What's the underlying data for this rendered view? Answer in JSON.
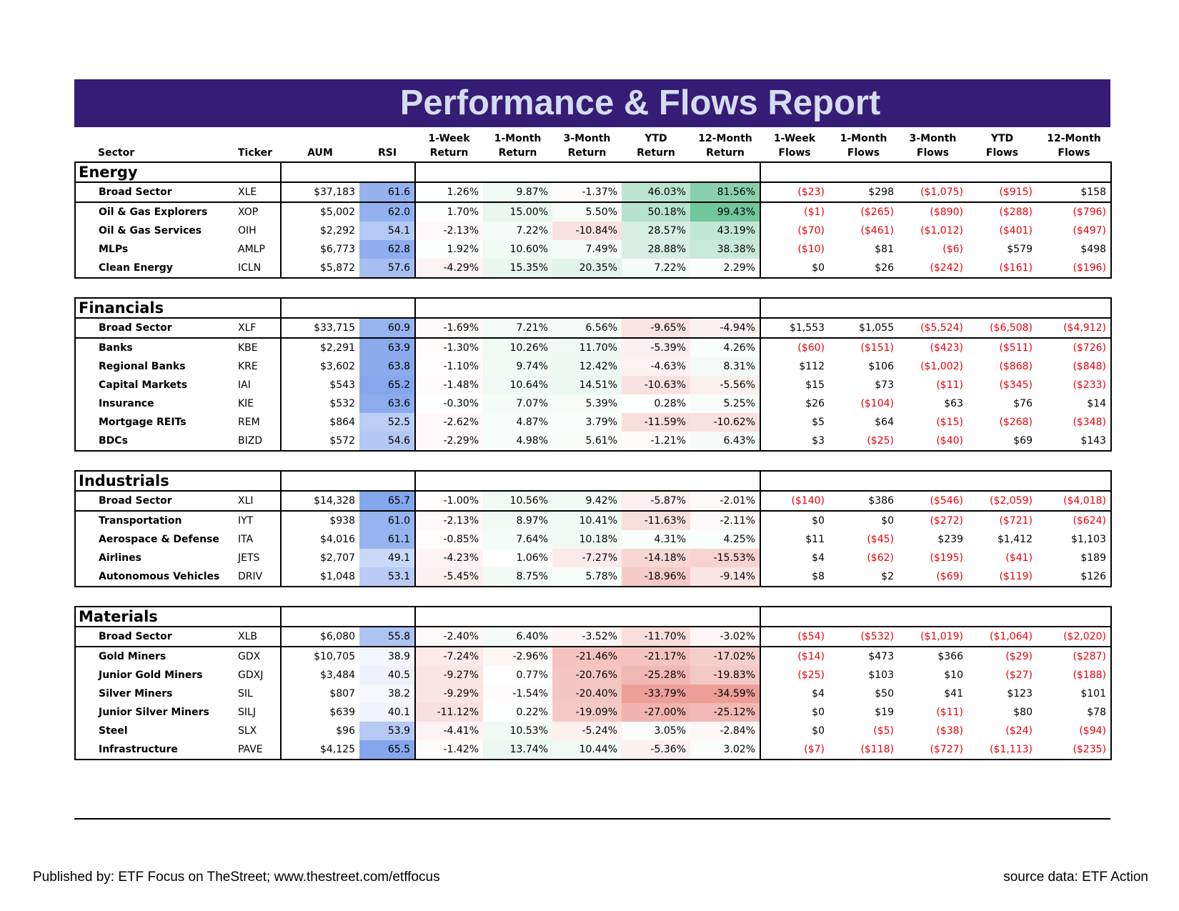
{
  "title": "Performance & Flows Report",
  "headers": [
    {
      "l1": "",
      "l2": "Sector"
    },
    {
      "l1": "",
      "l2": "Ticker"
    },
    {
      "l1": "",
      "l2": "AUM"
    },
    {
      "l1": "",
      "l2": "RSI"
    },
    {
      "l1": "1-Week",
      "l2": "Return"
    },
    {
      "l1": "1-Month",
      "l2": "Return"
    },
    {
      "l1": "3-Month",
      "l2": "Return"
    },
    {
      "l1": "YTD",
      "l2": "Return"
    },
    {
      "l1": "12-Month",
      "l2": "Return"
    },
    {
      "l1": "1-Week",
      "l2": "Flows"
    },
    {
      "l1": "1-Month",
      "l2": "Flows"
    },
    {
      "l1": "3-Month",
      "l2": "Flows"
    },
    {
      "l1": "YTD",
      "l2": "Flows"
    },
    {
      "l1": "12-Month",
      "l2": "Flows"
    }
  ],
  "colors": {
    "banner": "#351c75",
    "title": "#d6dcf0",
    "negative_flow": "#e8000b",
    "rsi_scale": "#6d95e8",
    "return_up": "#57bb8a",
    "return_down": "#e67c73"
  },
  "sectors": [
    {
      "name": "Energy",
      "rows": [
        {
          "name": "Broad Sector",
          "ticker": "XLE",
          "aum": "$37,183",
          "rsi": "61.6",
          "ret": [
            "1.26%",
            "9.87%",
            "-1.37%",
            "46.03%",
            "81.56%"
          ],
          "flows": [
            "($23)",
            "$298",
            "($1,075)",
            "($915)",
            "$158"
          ]
        },
        {
          "name": "Oil & Gas Explorers",
          "ticker": "XOP",
          "aum": "$5,002",
          "rsi": "62.0",
          "ret": [
            "1.70%",
            "15.00%",
            "5.50%",
            "50.18%",
            "99.43%"
          ],
          "flows": [
            "($1)",
            "($265)",
            "($890)",
            "($288)",
            "($796)"
          ]
        },
        {
          "name": "Oil & Gas Services",
          "ticker": "OIH",
          "aum": "$2,292",
          "rsi": "54.1",
          "ret": [
            "-2.13%",
            "7.22%",
            "-10.84%",
            "28.57%",
            "43.19%"
          ],
          "flows": [
            "($70)",
            "($461)",
            "($1,012)",
            "($401)",
            "($497)"
          ]
        },
        {
          "name": "MLPs",
          "ticker": "AMLP",
          "aum": "$6,773",
          "rsi": "62.8",
          "ret": [
            "1.92%",
            "10.60%",
            "7.49%",
            "28.88%",
            "38.38%"
          ],
          "flows": [
            "($10)",
            "$81",
            "($6)",
            "$579",
            "$498"
          ]
        },
        {
          "name": "Clean Energy",
          "ticker": "ICLN",
          "aum": "$5,872",
          "rsi": "57.6",
          "ret": [
            "-4.29%",
            "15.35%",
            "20.35%",
            "7.22%",
            "2.29%"
          ],
          "flows": [
            "$0",
            "$26",
            "($242)",
            "($161)",
            "($196)"
          ]
        }
      ]
    },
    {
      "name": "Financials",
      "rows": [
        {
          "name": "Broad Sector",
          "ticker": "XLF",
          "aum": "$33,715",
          "rsi": "60.9",
          "ret": [
            "-1.69%",
            "7.21%",
            "6.56%",
            "-9.65%",
            "-4.94%"
          ],
          "flows": [
            "$1,553",
            "$1,055",
            "($5,524)",
            "($6,508)",
            "($4,912)"
          ]
        },
        {
          "name": "Banks",
          "ticker": "KBE",
          "aum": "$2,291",
          "rsi": "63.9",
          "ret": [
            "-1.30%",
            "10.26%",
            "11.70%",
            "-5.39%",
            "4.26%"
          ],
          "flows": [
            "($60)",
            "($151)",
            "($423)",
            "($511)",
            "($726)"
          ]
        },
        {
          "name": "Regional Banks",
          "ticker": "KRE",
          "aum": "$3,602",
          "rsi": "63.8",
          "ret": [
            "-1.10%",
            "9.74%",
            "12.42%",
            "-4.63%",
            "8.31%"
          ],
          "flows": [
            "$112",
            "$106",
            "($1,002)",
            "($868)",
            "($848)"
          ]
        },
        {
          "name": "Capital Markets",
          "ticker": "IAI",
          "aum": "$543",
          "rsi": "65.2",
          "ret": [
            "-1.48%",
            "10.64%",
            "14.51%",
            "-10.63%",
            "-5.56%"
          ],
          "flows": [
            "$15",
            "$73",
            "($11)",
            "($345)",
            "($233)"
          ]
        },
        {
          "name": "Insurance",
          "ticker": "KIE",
          "aum": "$532",
          "rsi": "63.6",
          "ret": [
            "-0.30%",
            "7.07%",
            "5.39%",
            "0.28%",
            "5.25%"
          ],
          "flows": [
            "$26",
            "($104)",
            "$63",
            "$76",
            "$14"
          ]
        },
        {
          "name": "Mortgage REITs",
          "ticker": "REM",
          "aum": "$864",
          "rsi": "52.5",
          "ret": [
            "-2.62%",
            "4.87%",
            "3.79%",
            "-11.59%",
            "-10.62%"
          ],
          "flows": [
            "$5",
            "$64",
            "($15)",
            "($268)",
            "($348)"
          ]
        },
        {
          "name": "BDCs",
          "ticker": "BIZD",
          "aum": "$572",
          "rsi": "54.6",
          "ret": [
            "-2.29%",
            "4.98%",
            "5.61%",
            "-1.21%",
            "6.43%"
          ],
          "flows": [
            "$3",
            "($25)",
            "($40)",
            "$69",
            "$143"
          ]
        }
      ]
    },
    {
      "name": "Industrials",
      "rows": [
        {
          "name": "Broad Sector",
          "ticker": "XLI",
          "aum": "$14,328",
          "rsi": "65.7",
          "ret": [
            "-1.00%",
            "10.56%",
            "9.42%",
            "-5.87%",
            "-2.01%"
          ],
          "flows": [
            "($140)",
            "$386",
            "($546)",
            "($2,059)",
            "($4,018)"
          ]
        },
        {
          "name": "Transportation",
          "ticker": "IYT",
          "aum": "$938",
          "rsi": "61.0",
          "ret": [
            "-2.13%",
            "8.97%",
            "10.41%",
            "-11.63%",
            "-2.11%"
          ],
          "flows": [
            "$0",
            "$0",
            "($272)",
            "($721)",
            "($624)"
          ]
        },
        {
          "name": "Aerospace & Defense",
          "ticker": "ITA",
          "aum": "$4,016",
          "rsi": "61.1",
          "ret": [
            "-0.85%",
            "7.64%",
            "10.18%",
            "4.31%",
            "4.25%"
          ],
          "flows": [
            "$11",
            "($45)",
            "$239",
            "$1,412",
            "$1,103"
          ]
        },
        {
          "name": "Airlines",
          "ticker": "JETS",
          "aum": "$2,707",
          "rsi": "49.1",
          "ret": [
            "-4.23%",
            "1.06%",
            "-7.27%",
            "-14.18%",
            "-15.53%"
          ],
          "flows": [
            "$4",
            "($62)",
            "($195)",
            "($41)",
            "$189"
          ]
        },
        {
          "name": "Autonomous Vehicles",
          "ticker": "DRIV",
          "aum": "$1,048",
          "rsi": "53.1",
          "ret": [
            "-5.45%",
            "8.75%",
            "5.78%",
            "-18.96%",
            "-9.14%"
          ],
          "flows": [
            "$8",
            "$2",
            "($69)",
            "($119)",
            "$126"
          ]
        }
      ]
    },
    {
      "name": "Materials",
      "rows": [
        {
          "name": "Broad Sector",
          "ticker": "XLB",
          "aum": "$6,080",
          "rsi": "55.8",
          "ret": [
            "-2.40%",
            "6.40%",
            "-3.52%",
            "-11.70%",
            "-3.02%"
          ],
          "flows": [
            "($54)",
            "($532)",
            "($1,019)",
            "($1,064)",
            "($2,020)"
          ]
        },
        {
          "name": "Gold Miners",
          "ticker": "GDX",
          "aum": "$10,705",
          "rsi": "38.9",
          "ret": [
            "-7.24%",
            "-2.96%",
            "-21.46%",
            "-21.17%",
            "-17.02%"
          ],
          "flows": [
            "($14)",
            "$473",
            "$366",
            "($29)",
            "($287)"
          ]
        },
        {
          "name": "Junior Gold Miners",
          "ticker": "GDXJ",
          "aum": "$3,484",
          "rsi": "40.5",
          "ret": [
            "-9.27%",
            "0.77%",
            "-20.76%",
            "-25.28%",
            "-19.83%"
          ],
          "flows": [
            "($25)",
            "$103",
            "$10",
            "($27)",
            "($188)"
          ]
        },
        {
          "name": "Silver Miners",
          "ticker": "SIL",
          "aum": "$807",
          "rsi": "38.2",
          "ret": [
            "-9.29%",
            "-1.54%",
            "-20.40%",
            "-33.79%",
            "-34.59%"
          ],
          "flows": [
            "$4",
            "$50",
            "$41",
            "$123",
            "$101"
          ]
        },
        {
          "name": "Junior Silver Miners",
          "ticker": "SILJ",
          "aum": "$639",
          "rsi": "40.1",
          "ret": [
            "-11.12%",
            "0.22%",
            "-19.09%",
            "-27.00%",
            "-25.12%"
          ],
          "flows": [
            "$0",
            "$19",
            "($11)",
            "$80",
            "$78"
          ]
        },
        {
          "name": "Steel",
          "ticker": "SLX",
          "aum": "$96",
          "rsi": "53.9",
          "ret": [
            "-4.41%",
            "10.53%",
            "-5.24%",
            "3.05%",
            "-2.84%"
          ],
          "flows": [
            "$0",
            "($5)",
            "($38)",
            "($24)",
            "($94)"
          ]
        },
        {
          "name": "Infrastructure",
          "ticker": "PAVE",
          "aum": "$4,125",
          "rsi": "65.5",
          "ret": [
            "-1.42%",
            "13.74%",
            "10.44%",
            "-5.36%",
            "3.02%"
          ],
          "flows": [
            "($7)",
            "($118)",
            "($727)",
            "($1,113)",
            "($235)"
          ]
        }
      ]
    }
  ],
  "footer": {
    "published": "Published by: ETF Focus on TheStreet; www.thestreet.com/etffocus",
    "source": "source data: ETF Action"
  }
}
